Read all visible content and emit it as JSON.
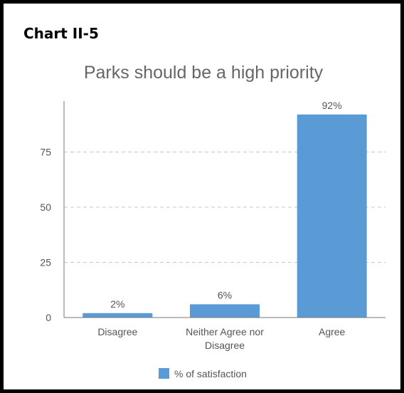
{
  "header": {
    "label": "Chart II-5"
  },
  "colors": {
    "bar": "#5b9bd5",
    "axis": "#777777",
    "grid": "#c8c8c8",
    "text": "#555555"
  },
  "chart_data": {
    "type": "bar",
    "title": "Parks should be a high priority",
    "categories": [
      "Disagree",
      "Neither Agree nor Disagree",
      "Agree"
    ],
    "category_lines": [
      [
        "Disagree"
      ],
      [
        "Neither Agree nor",
        "Disagree"
      ],
      [
        "Agree"
      ]
    ],
    "series": [
      {
        "name": "% of satisfaction",
        "values": [
          2,
          6,
          92
        ],
        "labels": [
          "2%",
          "6%",
          "92%"
        ]
      }
    ],
    "ylim": [
      0,
      100
    ],
    "yticks": [
      0,
      25,
      50,
      75
    ],
    "grid": true,
    "legend": "bottom"
  }
}
